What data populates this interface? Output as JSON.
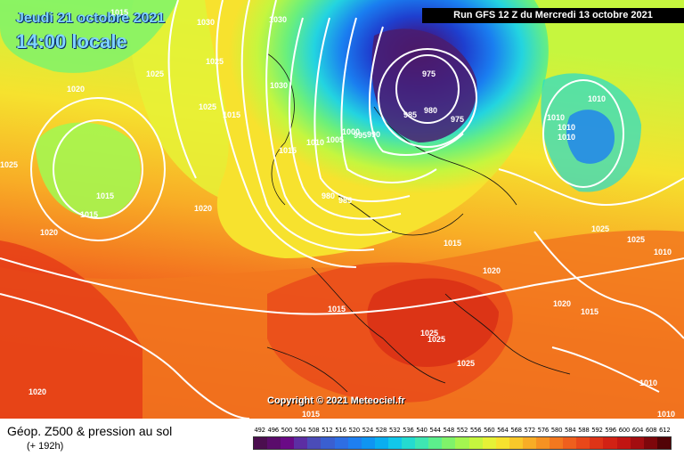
{
  "header": {
    "date_line": "Jeudi 21 octobre 2021",
    "time_line": "14:00 locale",
    "run_info": "Run GFS 12 Z du Mercredi 13 octobre 2021"
  },
  "copyright": "Copyright © 2021 Meteociel.fr",
  "footer": {
    "product": "Géop. Z500 & pression au sol",
    "horizon": "(+ 192h)"
  },
  "scale": {
    "labels": [
      "492",
      "496",
      "500",
      "504",
      "508",
      "512",
      "516",
      "520",
      "524",
      "528",
      "532",
      "536",
      "540",
      "544",
      "548",
      "552",
      "556",
      "560",
      "564",
      "568",
      "572",
      "576",
      "580",
      "584",
      "588",
      "592",
      "596",
      "600",
      "604",
      "608",
      "612"
    ],
    "colors": [
      "#4b0e4f",
      "#5a0c6b",
      "#6a0a86",
      "#5c2ea3",
      "#4b4cb8",
      "#3a5fd0",
      "#2e6ee3",
      "#1e7ff0",
      "#0f95f2",
      "#0aaef0",
      "#12c7ea",
      "#24dbd0",
      "#3ee6b2",
      "#5cef8c",
      "#7ff36a",
      "#a4f650",
      "#c6f63e",
      "#e6f236",
      "#f7e22e",
      "#f9c82a",
      "#f8ad26",
      "#f69222",
      "#f3781f",
      "#ef5f1d",
      "#e8481a",
      "#de3417",
      "#d22214",
      "#c21512",
      "#a30d10",
      "#7e070b",
      "#520306"
    ]
  },
  "map": {
    "legend_colors": {
      "z492": "#4b0e4f",
      "z612": "#520306"
    },
    "isobars": [
      {
        "label": "1015"
      },
      {
        "label": "1030"
      },
      {
        "label": "1030"
      },
      {
        "label": "1025"
      },
      {
        "label": "1025"
      },
      {
        "label": "1020"
      },
      {
        "label": "1025"
      },
      {
        "label": "1015"
      },
      {
        "label": "1030"
      },
      {
        "label": "1015"
      },
      {
        "label": "1010"
      },
      {
        "label": "1005"
      },
      {
        "label": "1000"
      },
      {
        "label": "995"
      },
      {
        "label": "990"
      },
      {
        "label": "985"
      },
      {
        "label": "980"
      },
      {
        "label": "975"
      },
      {
        "label": "975"
      },
      {
        "label": "980"
      },
      {
        "label": "985"
      },
      {
        "label": "1015"
      },
      {
        "label": "1015"
      },
      {
        "label": "1020"
      },
      {
        "label": "1020"
      },
      {
        "label": "1025"
      },
      {
        "label": "1010"
      },
      {
        "label": "1010"
      },
      {
        "label": "1010"
      },
      {
        "label": "1010"
      },
      {
        "label": "1015"
      },
      {
        "label": "1020"
      },
      {
        "label": "1025"
      },
      {
        "label": "1025"
      },
      {
        "label": "1010"
      },
      {
        "label": "1015"
      },
      {
        "label": "1020"
      },
      {
        "label": "1015"
      },
      {
        "label": "1025"
      },
      {
        "label": "1025"
      },
      {
        "label": "1025"
      },
      {
        "label": "1020"
      },
      {
        "label": "1015"
      },
      {
        "label": "1010"
      },
      {
        "label": "1010"
      }
    ]
  }
}
